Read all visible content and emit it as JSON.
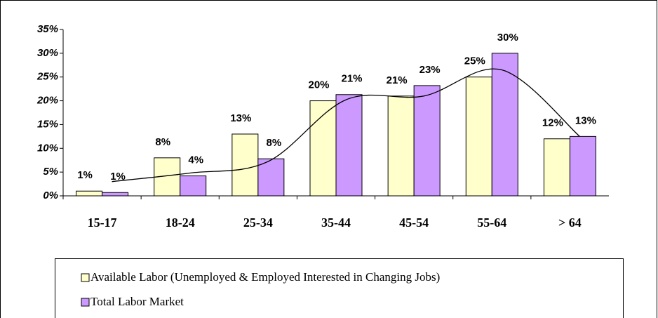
{
  "chart_data": {
    "type": "bar",
    "categories": [
      "15-17",
      "18-24",
      "25-34",
      "35-44",
      "45-54",
      "55-64",
      "> 64"
    ],
    "series": [
      {
        "name": "Available Labor (Unemployed & Employed Interested in Changing Jobs)",
        "color": "#ffffcc",
        "values": [
          1.0,
          8.0,
          13.0,
          20.0,
          21.0,
          25.0,
          12.0
        ],
        "value_labels": [
          "1%",
          "8%",
          "13%",
          "20%",
          "21%",
          "25%",
          "12%"
        ]
      },
      {
        "name": "Total Labor Market",
        "color": "#cc99ff",
        "values": [
          0.7,
          4.2,
          7.8,
          21.3,
          23.2,
          30.0,
          12.5
        ],
        "value_labels": [
          "1%",
          "4%",
          "8%",
          "21%",
          "23%",
          "30%",
          "13%"
        ]
      }
    ],
    "trendline": {
      "color": "#000000",
      "values": [
        3,
        4.8,
        7.2,
        20.2,
        21,
        26.5,
        12.5
      ]
    },
    "ylim": [
      0,
      35
    ],
    "yticks": [
      {
        "value": 0,
        "label": "0%"
      },
      {
        "value": 5,
        "label": "5%"
      },
      {
        "value": 10,
        "label": "10%"
      },
      {
        "value": 15,
        "label": "15%"
      },
      {
        "value": 20,
        "label": "20%"
      },
      {
        "value": 25,
        "label": "25%"
      },
      {
        "value": 30,
        "label": "30%"
      },
      {
        "value": 35,
        "label": "35%"
      }
    ],
    "grid": false
  }
}
